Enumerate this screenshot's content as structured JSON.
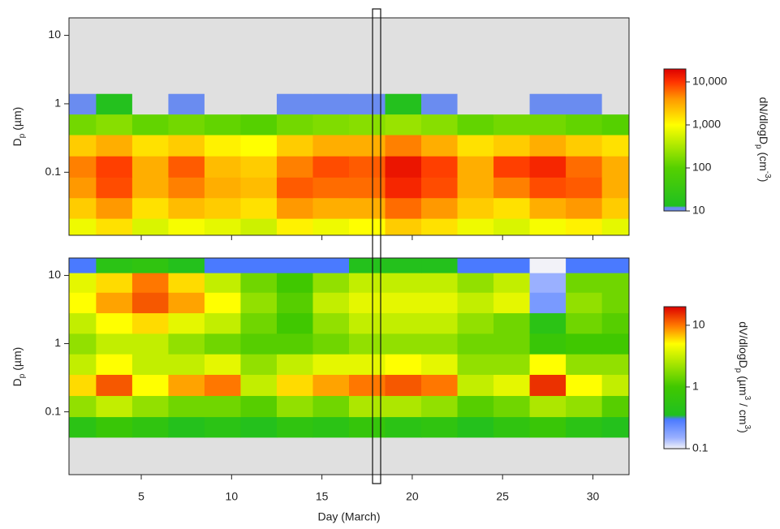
{
  "chart_data": [
    {
      "type": "heatmap",
      "ylabel": [
        "D",
        "p",
        " (µm)"
      ],
      "show_xtick_labels": false,
      "x": [
        1.5,
        3.5,
        5.5,
        7.5,
        9.5,
        11.5,
        13.5,
        15.5,
        17.5,
        19.5,
        21.5,
        23.5,
        25.5,
        27.5,
        29.5,
        31.5
      ],
      "y": [
        0.015,
        0.03,
        0.06,
        0.12,
        0.25,
        0.5,
        1,
        2,
        4,
        8,
        15
      ],
      "z": [
        [
          800,
          1500,
          600,
          900,
          700,
          500,
          1200,
          800,
          1000,
          2000,
          1500,
          800,
          600,
          900,
          1200,
          700
        ],
        [
          2000,
          4000,
          1500,
          2500,
          2000,
          1500,
          4000,
          3000,
          3000,
          6000,
          4000,
          2000,
          1500,
          3000,
          4000,
          2000
        ],
        [
          4000,
          8000,
          3000,
          5000,
          3000,
          2500,
          7000,
          6000,
          6000,
          12000,
          8000,
          3000,
          5000,
          8000,
          7000,
          3000
        ],
        [
          5000,
          9000,
          3000,
          7000,
          2500,
          2000,
          5000,
          8000,
          7000,
          15000,
          9000,
          3000,
          9000,
          12000,
          6000,
          3000
        ],
        [
          2000,
          3000,
          1500,
          2000,
          1200,
          1000,
          2000,
          3000,
          3000,
          5000,
          3000,
          1500,
          2000,
          3000,
          2000,
          1500
        ],
        [
          150,
          200,
          120,
          150,
          120,
          100,
          150,
          180,
          200,
          250,
          200,
          120,
          150,
          150,
          120,
          100
        ],
        [
          12,
          15,
          8,
          12,
          8,
          8,
          10,
          12,
          12,
          15,
          12,
          8,
          5,
          10,
          10,
          8
        ],
        [
          3,
          4,
          5,
          4,
          3,
          2,
          3,
          3,
          3,
          3,
          3,
          2,
          2,
          3,
          3,
          3
        ],
        [
          1,
          1,
          2,
          1,
          1,
          1,
          1,
          1,
          1,
          1,
          1,
          1,
          1,
          1,
          1,
          1
        ],
        [
          1,
          1,
          1,
          1,
          1,
          1,
          1,
          1,
          1,
          1,
          1,
          1,
          1,
          1,
          1,
          1
        ],
        [
          1,
          1,
          1,
          1,
          1,
          1,
          1,
          1,
          1,
          1,
          1,
          1,
          1,
          1,
          1,
          1
        ]
      ],
      "xlim": [
        1,
        32
      ],
      "xticks": [
        5,
        10,
        15,
        20,
        25,
        30
      ],
      "ylim": [
        0.012,
        18
      ],
      "yticks": [
        0.1,
        1,
        10
      ],
      "log_y": true,
      "below_color": "#e0e0e0",
      "colorbar": {
        "label": [
          "dN/dlogD",
          "p",
          " (cm",
          "-3",
          ")"
        ],
        "lim": [
          10,
          20000
        ],
        "ticks": [
          10,
          100,
          {
            "value": 1000,
            "label": "1,000"
          },
          {
            "value": 10000,
            "label": "10,000"
          }
        ],
        "colorscale": [
          [
            10,
            "#6a8cf0"
          ],
          [
            12,
            "#6a8cf0"
          ],
          [
            13,
            "#20c020"
          ],
          [
            100,
            "#55d000"
          ],
          [
            1000,
            "#ffff00"
          ],
          [
            4000,
            "#ff9900"
          ],
          [
            10000,
            "#ff3300"
          ],
          [
            20000,
            "#dd0000"
          ]
        ]
      }
    },
    {
      "type": "heatmap",
      "ylabel": [
        "D",
        "p",
        " (µm)"
      ],
      "xlabel": "Day (March)",
      "show_xtick_labels": true,
      "x": [
        1.5,
        3.5,
        5.5,
        7.5,
        9.5,
        11.5,
        13.5,
        15.5,
        17.5,
        19.5,
        21.5,
        23.5,
        25.5,
        27.5,
        29.5,
        31.5
      ],
      "y": [
        0.015,
        0.03,
        0.06,
        0.12,
        0.25,
        0.5,
        1,
        2,
        4,
        8,
        15
      ],
      "z": [
        [
          0.05,
          0.05,
          0.05,
          0.05,
          0.05,
          0.05,
          0.05,
          0.05,
          0.05,
          0.05,
          0.05,
          0.05,
          0.05,
          0.05,
          0.05,
          0.05
        ],
        [
          0.05,
          0.05,
          0.05,
          0.05,
          0.05,
          0.05,
          0.05,
          0.05,
          0.05,
          0.05,
          0.05,
          0.05,
          0.05,
          0.05,
          0.05,
          0.05
        ],
        [
          0.5,
          0.8,
          0.6,
          0.4,
          0.5,
          0.4,
          0.6,
          0.5,
          0.7,
          0.5,
          0.6,
          0.4,
          0.6,
          0.8,
          0.5,
          0.4
        ],
        [
          2,
          3,
          2,
          1.5,
          1.5,
          1.2,
          2,
          1.5,
          2.5,
          2.5,
          2,
          1.2,
          1.5,
          2.5,
          2,
          1.2
        ],
        [
          6,
          12,
          5,
          8,
          10,
          3,
          6,
          8,
          10,
          12,
          10,
          3,
          4,
          15,
          5,
          3
        ],
        [
          3,
          5,
          3,
          3,
          4,
          2,
          3,
          4,
          4,
          5,
          4,
          2,
          2,
          5,
          2,
          2
        ],
        [
          2,
          3,
          3,
          2,
          1.5,
          1.2,
          1.2,
          1.5,
          2,
          2,
          2,
          1.5,
          1.5,
          0.8,
          1,
          1
        ],
        [
          3,
          5,
          6,
          4,
          3,
          1.5,
          1,
          2,
          3,
          3,
          3,
          2,
          1.5,
          0.5,
          1.5,
          1.2
        ],
        [
          5,
          8,
          12,
          8,
          5,
          2,
          1.2,
          3,
          4,
          4,
          4,
          3,
          4,
          0.2,
          2,
          1.5
        ],
        [
          4,
          6,
          10,
          6,
          3,
          1.5,
          1,
          2,
          3,
          3,
          3,
          2,
          3,
          0.15,
          1.5,
          1.5
        ],
        [
          0.3,
          0.5,
          0.6,
          0.4,
          0.3,
          0.3,
          0.3,
          0.3,
          0.4,
          0.4,
          0.4,
          0.3,
          0.3,
          0.1,
          0.3,
          0.3
        ]
      ],
      "xlim": [
        1,
        32
      ],
      "xticks": [
        5,
        10,
        15,
        20,
        25,
        30
      ],
      "ylim": [
        0.012,
        18
      ],
      "yticks": [
        0.1,
        1,
        10
      ],
      "log_y": true,
      "below_color": "#e0e0e0",
      "colorbar": {
        "label": [
          "dV/dlogD",
          "p",
          " (µm",
          "3",
          " / cm",
          "3",
          ")"
        ],
        "lim": [
          0.1,
          20
        ],
        "ticks": [
          0.1,
          1,
          10
        ],
        "colorscale": [
          [
            0.1,
            "#f2f2f8"
          ],
          [
            0.15,
            "#9ab0ff"
          ],
          [
            0.3,
            "#4a7aff"
          ],
          [
            0.35,
            "#20c020"
          ],
          [
            1,
            "#40c800"
          ],
          [
            5,
            "#ffff00"
          ],
          [
            10,
            "#ff7700"
          ],
          [
            20,
            "#dd0000"
          ]
        ]
      }
    }
  ]
}
